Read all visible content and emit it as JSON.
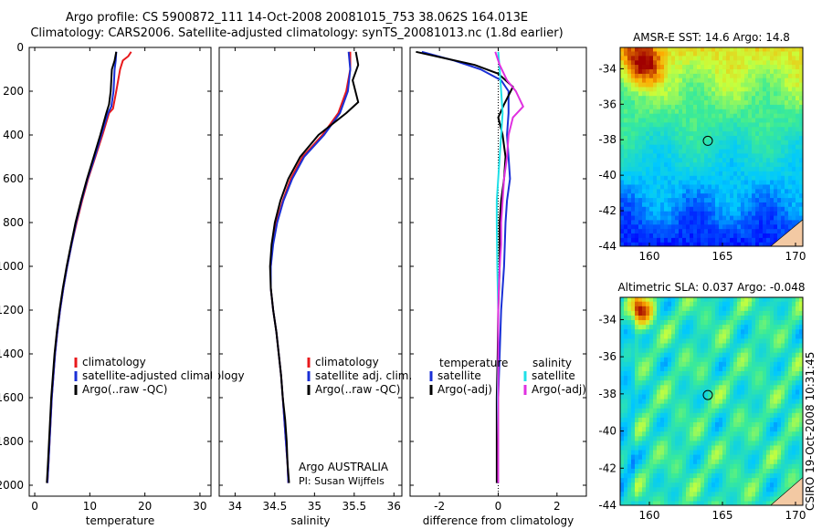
{
  "header": {
    "line1": "Argo profile: CS 5900872_111 14-Oct-2008 20081015_753 38.062S 164.013E",
    "line2": "Climatology: CARS2006. Satellite-adjusted climatology: synTS_20081013.nc (1.8d earlier)"
  },
  "credit": "CSIRO 19-Oct-2008 10:31:45",
  "colors": {
    "red": "#e8191c",
    "blue": "#1a2fd6",
    "black": "#000000",
    "cyan": "#20e0e8",
    "magenta": "#e030e0"
  },
  "chart_data": [
    {
      "type": "line",
      "xlabel": "temperature",
      "xlim": [
        -1,
        32
      ],
      "xticks": [
        0,
        10,
        20,
        30
      ],
      "ylim": [
        2050,
        0
      ],
      "yticks": [
        0,
        200,
        400,
        600,
        800,
        1000,
        1200,
        1400,
        1600,
        1800,
        2000
      ],
      "legend": [
        "climatology",
        "satellite-adjusted climatology",
        "Argo(..raw -QC)"
      ],
      "series": [
        {
          "name": "climatology",
          "color": "red",
          "points": [
            [
              17.5,
              20
            ],
            [
              17,
              40
            ],
            [
              16,
              60
            ],
            [
              15.5,
              100
            ],
            [
              14.8,
              200
            ],
            [
              14.2,
              280
            ],
            [
              13.5,
              300
            ],
            [
              12.3,
              400
            ],
            [
              11,
              500
            ],
            [
              9.7,
              600
            ],
            [
              8.6,
              700
            ],
            [
              7.6,
              800
            ],
            [
              6.7,
              900
            ],
            [
              5.9,
              1000
            ],
            [
              5.2,
              1100
            ],
            [
              4.6,
              1200
            ],
            [
              4.1,
              1300
            ],
            [
              3.7,
              1400
            ],
            [
              3.4,
              1500
            ],
            [
              3.1,
              1600
            ],
            [
              2.9,
              1700
            ],
            [
              2.7,
              1800
            ],
            [
              2.5,
              1900
            ],
            [
              2.3,
              1990
            ]
          ]
        },
        {
          "name": "satellite-adjusted climatology",
          "color": "blue",
          "points": [
            [
              14.8,
              20
            ],
            [
              14.7,
              60
            ],
            [
              14.5,
              100
            ],
            [
              14.3,
              200
            ],
            [
              13.9,
              270
            ],
            [
              13.3,
              300
            ],
            [
              12.1,
              400
            ],
            [
              10.9,
              500
            ],
            [
              9.6,
              600
            ],
            [
              8.5,
              700
            ],
            [
              7.5,
              800
            ],
            [
              6.7,
              900
            ],
            [
              5.9,
              1000
            ],
            [
              5.2,
              1100
            ],
            [
              4.6,
              1200
            ],
            [
              4.1,
              1300
            ],
            [
              3.7,
              1400
            ],
            [
              3.4,
              1500
            ],
            [
              3.1,
              1600
            ],
            [
              2.9,
              1700
            ],
            [
              2.7,
              1800
            ],
            [
              2.5,
              1900
            ],
            [
              2.3,
              1990
            ]
          ]
        },
        {
          "name": "Argo(..raw -QC)",
          "color": "black",
          "points": [
            [
              14.8,
              20
            ],
            [
              14.5,
              60
            ],
            [
              14,
              100
            ],
            [
              13.8,
              200
            ],
            [
              13.5,
              260
            ],
            [
              13,
              300
            ],
            [
              11.9,
              400
            ],
            [
              10.7,
              500
            ],
            [
              9.5,
              600
            ],
            [
              8.4,
              700
            ],
            [
              7.4,
              800
            ],
            [
              6.6,
              900
            ],
            [
              5.8,
              1000
            ],
            [
              5.1,
              1100
            ],
            [
              4.5,
              1200
            ],
            [
              4.0,
              1300
            ],
            [
              3.6,
              1400
            ],
            [
              3.3,
              1500
            ],
            [
              3.0,
              1600
            ],
            [
              2.8,
              1700
            ],
            [
              2.6,
              1800
            ],
            [
              2.4,
              1900
            ],
            [
              2.2,
              1990
            ]
          ]
        }
      ]
    },
    {
      "type": "line",
      "xlabel": "salinity",
      "xlim": [
        33.8,
        36.1
      ],
      "xticks": [
        34,
        34.5,
        35,
        35.5,
        36
      ],
      "xtick_labels": [
        "34",
        "34.5",
        "35",
        "35.5",
        "36"
      ],
      "ylim": [
        2050,
        0
      ],
      "legend": [
        "climatology",
        "satellite adj. clim.",
        "Argo(..raw -QC)"
      ],
      "annotation": [
        "Argo AUSTRALIA",
        "PI: Susan Wijffels"
      ],
      "series": [
        {
          "name": "climatology",
          "color": "red",
          "points": [
            [
              35.45,
              20
            ],
            [
              35.45,
              100
            ],
            [
              35.4,
              200
            ],
            [
              35.3,
              300
            ],
            [
              35.1,
              400
            ],
            [
              34.85,
              500
            ],
            [
              34.7,
              600
            ],
            [
              34.6,
              700
            ],
            [
              34.52,
              800
            ],
            [
              34.47,
              900
            ],
            [
              34.45,
              1000
            ],
            [
              34.45,
              1100
            ],
            [
              34.48,
              1200
            ],
            [
              34.52,
              1300
            ],
            [
              34.55,
              1400
            ],
            [
              34.58,
              1500
            ],
            [
              34.6,
              1600
            ],
            [
              34.62,
              1700
            ],
            [
              34.64,
              1800
            ],
            [
              34.66,
              1900
            ],
            [
              34.67,
              1990
            ]
          ]
        },
        {
          "name": "satellite adj. clim.",
          "color": "blue",
          "points": [
            [
              35.43,
              20
            ],
            [
              35.45,
              100
            ],
            [
              35.42,
              200
            ],
            [
              35.32,
              300
            ],
            [
              35.12,
              400
            ],
            [
              34.87,
              500
            ],
            [
              34.72,
              600
            ],
            [
              34.61,
              700
            ],
            [
              34.53,
              800
            ],
            [
              34.48,
              900
            ],
            [
              34.45,
              1000
            ],
            [
              34.45,
              1100
            ],
            [
              34.48,
              1200
            ],
            [
              34.52,
              1300
            ],
            [
              34.55,
              1400
            ],
            [
              34.58,
              1500
            ],
            [
              34.6,
              1600
            ],
            [
              34.62,
              1700
            ],
            [
              34.64,
              1800
            ],
            [
              34.66,
              1900
            ],
            [
              34.67,
              1990
            ]
          ]
        },
        {
          "name": "Argo(..raw -QC)",
          "color": "black",
          "points": [
            [
              35.52,
              20
            ],
            [
              35.55,
              80
            ],
            [
              35.48,
              150
            ],
            [
              35.55,
              250
            ],
            [
              35.4,
              300
            ],
            [
              35.05,
              400
            ],
            [
              34.82,
              500
            ],
            [
              34.67,
              600
            ],
            [
              34.57,
              700
            ],
            [
              34.5,
              800
            ],
            [
              34.46,
              900
            ],
            [
              34.44,
              1000
            ],
            [
              34.45,
              1100
            ],
            [
              34.48,
              1200
            ],
            [
              34.52,
              1300
            ],
            [
              34.55,
              1400
            ],
            [
              34.58,
              1500
            ],
            [
              34.6,
              1600
            ],
            [
              34.63,
              1700
            ],
            [
              34.65,
              1800
            ],
            [
              34.66,
              1900
            ],
            [
              34.68,
              1990
            ]
          ]
        }
      ]
    },
    {
      "type": "line",
      "xlabel": "difference from climatology",
      "xlim": [
        -3,
        3
      ],
      "xticks": [
        -2,
        0,
        2
      ],
      "ylim": [
        2050,
        0
      ],
      "legend_left_title": "temperature",
      "legend_left": [
        "satellite",
        "Argo(-adj)"
      ],
      "legend_right_title": "salinity",
      "legend_right": [
        "satellite",
        "Argo(-adj)"
      ],
      "series": [
        {
          "name": "temperature satellite",
          "color": "blue",
          "points": [
            [
              -2.6,
              20
            ],
            [
              -1.5,
              60
            ],
            [
              -0.6,
              100
            ],
            [
              0.1,
              150
            ],
            [
              0.35,
              200
            ],
            [
              0.35,
              300
            ],
            [
              0.3,
              400
            ],
            [
              0.35,
              500
            ],
            [
              0.4,
              600
            ],
            [
              0.3,
              700
            ],
            [
              0.25,
              800
            ],
            [
              0.2,
              1000
            ],
            [
              0.1,
              1200
            ],
            [
              0.05,
              1400
            ],
            [
              0.0,
              1600
            ],
            [
              0.0,
              1800
            ],
            [
              0.0,
              1990
            ]
          ]
        },
        {
          "name": "temperature Argo(-adj)",
          "color": "black",
          "points": [
            [
              -2.8,
              20
            ],
            [
              -1.8,
              50
            ],
            [
              -0.8,
              80
            ],
            [
              0.0,
              120
            ],
            [
              0.5,
              180
            ],
            [
              0.2,
              260
            ],
            [
              0.0,
              320
            ],
            [
              0.15,
              400
            ],
            [
              0.25,
              500
            ],
            [
              0.2,
              600
            ],
            [
              0.1,
              700
            ],
            [
              0.05,
              800
            ],
            [
              0.05,
              1000
            ],
            [
              0.0,
              1200
            ],
            [
              -0.02,
              1400
            ],
            [
              -0.05,
              1600
            ],
            [
              -0.05,
              1800
            ],
            [
              -0.05,
              1990
            ]
          ]
        },
        {
          "name": "salinity satellite",
          "color": "cyan",
          "points": [
            [
              0.0,
              20
            ],
            [
              0.05,
              100
            ],
            [
              0.1,
              200
            ],
            [
              0.15,
              300
            ],
            [
              0.1,
              400
            ],
            [
              0.05,
              500
            ],
            [
              0.0,
              600
            ],
            [
              -0.05,
              700
            ],
            [
              -0.05,
              800
            ],
            [
              -0.03,
              1000
            ],
            [
              0.0,
              1200
            ],
            [
              0.0,
              1400
            ],
            [
              -0.02,
              1600
            ],
            [
              0.0,
              1800
            ],
            [
              0.0,
              1990
            ]
          ]
        },
        {
          "name": "salinity Argo(-adj)",
          "color": "magenta",
          "points": [
            [
              -0.1,
              20
            ],
            [
              0.05,
              80
            ],
            [
              0.3,
              150
            ],
            [
              0.6,
              200
            ],
            [
              0.85,
              270
            ],
            [
              0.5,
              320
            ],
            [
              0.35,
              400
            ],
            [
              0.3,
              500
            ],
            [
              0.2,
              600
            ],
            [
              0.15,
              700
            ],
            [
              0.1,
              800
            ],
            [
              0.1,
              900
            ],
            [
              0.05,
              1000
            ],
            [
              0.02,
              1100
            ],
            [
              0.0,
              1200
            ],
            [
              0.0,
              1400
            ],
            [
              0.0,
              1600
            ],
            [
              0.0,
              1800
            ],
            [
              0.0,
              1990
            ]
          ]
        }
      ]
    },
    {
      "type": "heatmap",
      "title": "AMSR-E SST: 14.6 Argo: 14.8",
      "xlim": [
        158,
        170.5
      ],
      "ylim": [
        -44,
        -32.8
      ],
      "xticks": [
        160,
        165,
        170
      ],
      "yticks": [
        -34,
        -36,
        -38,
        -40,
        -42,
        -44
      ],
      "marker": [
        164.0,
        -38.06
      ]
    },
    {
      "type": "heatmap",
      "title": "Altimetric SLA: 0.037 Argo: -0.048",
      "xlim": [
        158,
        170.5
      ],
      "ylim": [
        -44,
        -32.8
      ],
      "xticks": [
        160,
        165,
        170
      ],
      "yticks": [
        -34,
        -36,
        -38,
        -40,
        -42,
        -44
      ],
      "marker": [
        164.0,
        -38.06
      ]
    }
  ]
}
